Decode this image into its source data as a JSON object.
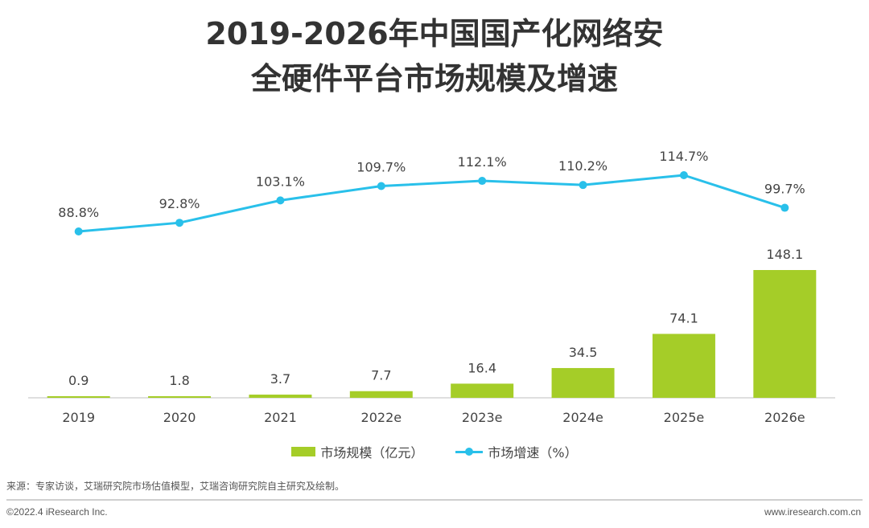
{
  "header": {
    "title_line1": "2019-2026年中国国产化网络安",
    "title_line2": "全硬件平台市场规模及增速"
  },
  "chart_data": {
    "type": "bar",
    "categories": [
      "2019",
      "2020",
      "2021",
      "2022e",
      "2023e",
      "2024e",
      "2025e",
      "2026e"
    ],
    "series": [
      {
        "name": "市场规模（亿元）",
        "type": "bar",
        "color": "#a5cd28",
        "values": [
          0.9,
          1.8,
          3.7,
          7.7,
          16.4,
          34.5,
          74.1,
          148.1
        ],
        "labels": [
          "0.9",
          "1.8",
          "3.7",
          "7.7",
          "16.4",
          "34.5",
          "74.1",
          "148.1"
        ]
      },
      {
        "name": "市场增速（%）",
        "type": "line",
        "color": "#29c0ea",
        "values": [
          88.8,
          92.8,
          103.1,
          109.7,
          112.1,
          110.2,
          114.7,
          99.7
        ],
        "labels": [
          "88.8%",
          "92.8%",
          "103.1%",
          "109.7%",
          "112.1%",
          "110.2%",
          "114.7%",
          "99.7%"
        ]
      }
    ],
    "legend": "bottom",
    "grid": false
  },
  "footer": {
    "source": "来源：专家访谈，艾瑞研究院市场估值模型，艾瑞咨询研究院自主研究及绘制。",
    "copyright": "©2022.4 iResearch Inc.",
    "website": "www.iresearch.com.cn"
  }
}
